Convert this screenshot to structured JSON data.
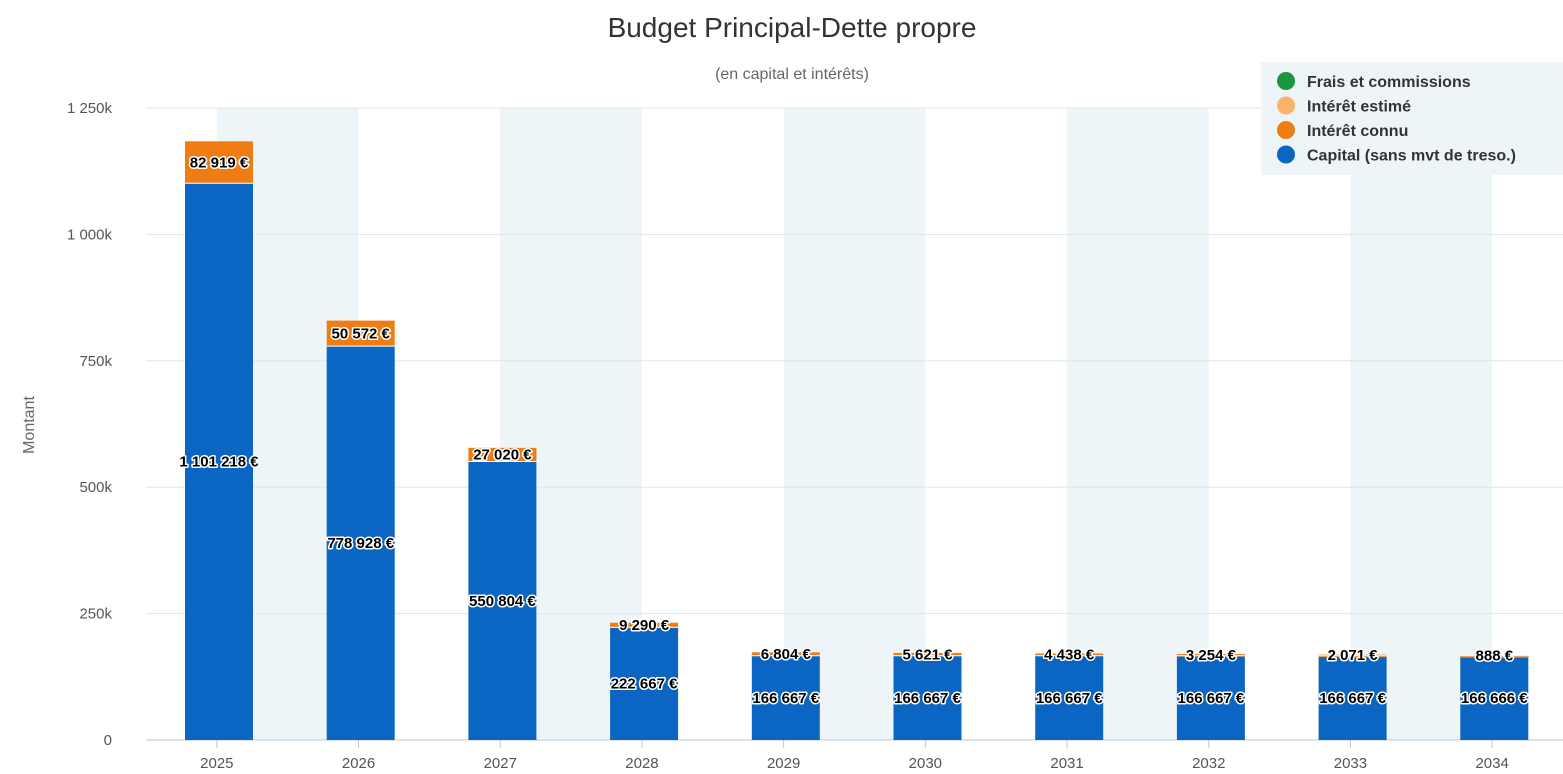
{
  "chart_data": {
    "type": "bar",
    "stacked": true,
    "title": "Budget Principal-Dette propre",
    "subtitle": "(en capital et intérêts)",
    "ylabel": "Montant",
    "xlabel": "",
    "ylim": [
      0,
      1250000
    ],
    "yticks": [
      0,
      250000,
      500000,
      750000,
      1000000,
      1250000
    ],
    "ytick_labels": [
      "0",
      "250k",
      "500k",
      "750k",
      "1 000k",
      "1 250k"
    ],
    "categories": [
      "2025",
      "2026",
      "2027",
      "2028",
      "2029",
      "2030",
      "2031",
      "2032",
      "2033",
      "2034"
    ],
    "grid": true,
    "legend_position": "top-right",
    "series": [
      {
        "name": "Capital (sans mvt de treso.)",
        "color": "#0a66c2",
        "values": [
          1101218,
          778928,
          550804,
          222667,
          166667,
          166667,
          166667,
          166667,
          166667,
          166666
        ],
        "labels": [
          "1 101 218 €",
          "778 928 €",
          "550 804 €",
          "222 667 €",
          "166 667 €",
          "166 667 €",
          "166 667 €",
          "166 667 €",
          "166 667 €",
          "166 666 €"
        ]
      },
      {
        "name": "Intérêt connu",
        "color": "#f07d14",
        "values": [
          82919,
          50572,
          27020,
          9290,
          6804,
          5621,
          4438,
          3254,
          2071,
          888
        ],
        "labels": [
          "82 919 €",
          "50 572 €",
          "27 020 €",
          "9 290 €",
          "6 804 €",
          "5 621 €",
          "4 438 €",
          "3 254 €",
          "2 071 €",
          "888 €"
        ]
      },
      {
        "name": "Intérêt estimé",
        "color": "#fbb36a",
        "values": [
          0,
          0,
          0,
          0,
          0,
          0,
          0,
          0,
          0,
          0
        ],
        "labels": []
      },
      {
        "name": "Frais et commissions",
        "color": "#1a9641",
        "values": [
          0,
          0,
          0,
          0,
          0,
          0,
          0,
          0,
          0,
          0
        ],
        "labels": []
      }
    ],
    "legend_order": [
      "Frais et commissions",
      "Intérêt estimé",
      "Intérêt connu",
      "Capital (sans mvt de treso.)"
    ],
    "band_color": "#eef5f8",
    "grid_color": "#dde6ec",
    "axis_color": "#b8c8d8"
  }
}
